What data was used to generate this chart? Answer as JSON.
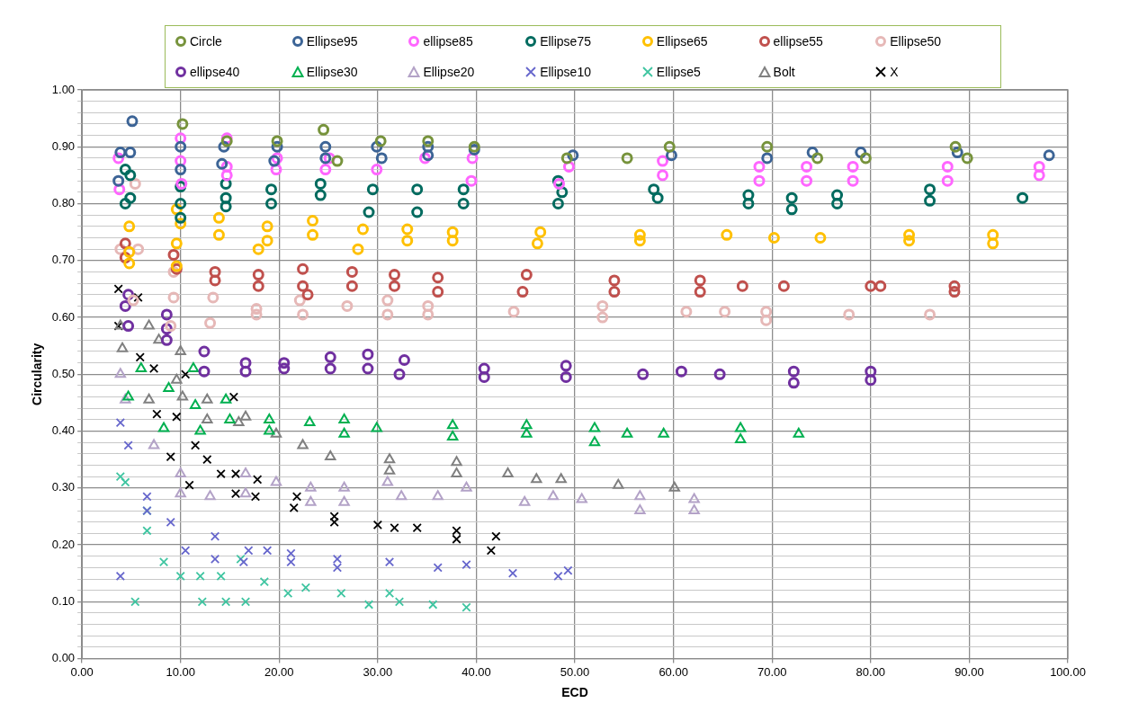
{
  "chart_data": {
    "type": "scatter",
    "xlabel": "ECD",
    "ylabel": "Circularity",
    "grid": true,
    "legend": "top",
    "xlim": [
      0,
      100
    ],
    "xticks": [
      {
        "value": 0,
        "label": "0.00"
      },
      {
        "value": 10,
        "label": "10.00"
      },
      {
        "value": 20,
        "label": "20.00"
      },
      {
        "value": 30,
        "label": "30.00"
      },
      {
        "value": 40,
        "label": "40.00"
      },
      {
        "value": 50,
        "label": "50.00"
      },
      {
        "value": 60,
        "label": "60.00"
      },
      {
        "value": 70,
        "label": "70.00"
      },
      {
        "value": 80,
        "label": "80.00"
      },
      {
        "value": 90,
        "label": "90.00"
      },
      {
        "value": 100,
        "label": "100.00"
      }
    ],
    "ylim": [
      0,
      1
    ],
    "yticks": [
      {
        "value": 0,
        "label": "0.00"
      },
      {
        "value": 0.02,
        "label": null
      },
      {
        "value": 0.04,
        "label": null
      },
      {
        "value": 0.06,
        "label": null
      },
      {
        "value": 0.08,
        "label": null
      },
      {
        "value": 0.1,
        "label": "0.10"
      },
      {
        "value": 0.12,
        "label": null
      },
      {
        "value": 0.14,
        "label": null
      },
      {
        "value": 0.16,
        "label": null
      },
      {
        "value": 0.18,
        "label": null
      },
      {
        "value": 0.2,
        "label": "0.20"
      },
      {
        "value": 0.22,
        "label": null
      },
      {
        "value": 0.24,
        "label": null
      },
      {
        "value": 0.26,
        "label": null
      },
      {
        "value": 0.28,
        "label": null
      },
      {
        "value": 0.3,
        "label": "0.30"
      },
      {
        "value": 0.32,
        "label": null
      },
      {
        "value": 0.34,
        "label": null
      },
      {
        "value": 0.36,
        "label": null
      },
      {
        "value": 0.38,
        "label": null
      },
      {
        "value": 0.4,
        "label": "0.40"
      },
      {
        "value": 0.42,
        "label": null
      },
      {
        "value": 0.44,
        "label": null
      },
      {
        "value": 0.46,
        "label": null
      },
      {
        "value": 0.48,
        "label": null
      },
      {
        "value": 0.5,
        "label": "0.50"
      },
      {
        "value": 0.52,
        "label": null
      },
      {
        "value": 0.54,
        "label": null
      },
      {
        "value": 0.56,
        "label": null
      },
      {
        "value": 0.58,
        "label": null
      },
      {
        "value": 0.6,
        "label": "0.60"
      },
      {
        "value": 0.62,
        "label": null
      },
      {
        "value": 0.64,
        "label": null
      },
      {
        "value": 0.66,
        "label": null
      },
      {
        "value": 0.68,
        "label": null
      },
      {
        "value": 0.7,
        "label": "0.70"
      },
      {
        "value": 0.72,
        "label": null
      },
      {
        "value": 0.74,
        "label": null
      },
      {
        "value": 0.76,
        "label": null
      },
      {
        "value": 0.78,
        "label": null
      },
      {
        "value": 0.8,
        "label": "0.80"
      },
      {
        "value": 0.82,
        "label": null
      },
      {
        "value": 0.84,
        "label": null
      },
      {
        "value": 0.86,
        "label": null
      },
      {
        "value": 0.88,
        "label": null
      },
      {
        "value": 0.9,
        "label": "0.90"
      },
      {
        "value": 0.92,
        "label": null
      },
      {
        "value": 0.94,
        "label": null
      },
      {
        "value": 0.96,
        "label": null
      },
      {
        "value": 0.98,
        "label": null
      },
      {
        "value": 1,
        "label": "1.00"
      }
    ],
    "series": [
      {
        "name": "Circle",
        "color": "#77933c",
        "marker": "circle",
        "x": [
          10.2,
          24.5,
          19.8,
          30.3,
          14.7,
          59.6,
          69.5,
          88.6,
          89.8,
          49.2,
          35.1,
          39.8,
          55.3,
          74.6,
          79.5,
          25.9
        ],
        "values": [
          0.94,
          0.93,
          0.91,
          0.91,
          0.91,
          0.9,
          0.9,
          0.9,
          0.88,
          0.88,
          0.91,
          0.9,
          0.88,
          0.88,
          0.88,
          0.875
        ]
      },
      {
        "name": "Ellipse95",
        "color": "#3c6496",
        "marker": "circle",
        "x": [
          5.1,
          3.9,
          4.9,
          3.7,
          10,
          10,
          14.4,
          14.2,
          19.8,
          19.5,
          24.7,
          24.7,
          29.9,
          30.4,
          35.1,
          35.1,
          39.8,
          49.8,
          59.8,
          69.5,
          74.1,
          79,
          88.8,
          98.1
        ],
        "values": [
          0.945,
          0.89,
          0.89,
          0.84,
          0.9,
          0.86,
          0.9,
          0.87,
          0.9,
          0.875,
          0.9,
          0.88,
          0.9,
          0.88,
          0.9,
          0.885,
          0.895,
          0.885,
          0.885,
          0.88,
          0.89,
          0.89,
          0.89,
          0.885
        ]
      },
      {
        "name": "ellipse85",
        "color": "#ff66ff",
        "marker": "circle",
        "x": [
          3.8,
          3.7,
          10,
          10,
          10.1,
          14.7,
          14.7,
          14.7,
          19.8,
          19.7,
          25.1,
          24.7,
          29.9,
          34.8,
          39.6,
          39.5,
          48.4,
          49.4,
          58.9,
          58.9,
          68.7,
          68.7,
          73.5,
          73.5,
          78.2,
          78.2,
          87.8,
          87.8,
          97.1,
          97.1
        ],
        "values": [
          0.825,
          0.88,
          0.915,
          0.875,
          0.835,
          0.865,
          0.85,
          0.915,
          0.88,
          0.86,
          0.88,
          0.86,
          0.86,
          0.88,
          0.88,
          0.84,
          0.835,
          0.865,
          0.875,
          0.85,
          0.865,
          0.84,
          0.865,
          0.84,
          0.865,
          0.84,
          0.865,
          0.84,
          0.865,
          0.85
        ]
      },
      {
        "name": "Ellipse75",
        "color": "#006b5f",
        "marker": "circle",
        "x": [
          4.4,
          4.9,
          4.4,
          4.9,
          10,
          10,
          10,
          14.6,
          14.6,
          14.6,
          19.2,
          19.2,
          24.2,
          24.2,
          29.1,
          29.5,
          34,
          34,
          38.7,
          38.7,
          48.3,
          48.3,
          48.7,
          58,
          58.4,
          67.6,
          67.6,
          72,
          72,
          76.6,
          76.6,
          86,
          86,
          95.4
        ],
        "values": [
          0.86,
          0.85,
          0.8,
          0.81,
          0.83,
          0.8,
          0.775,
          0.835,
          0.81,
          0.795,
          0.825,
          0.8,
          0.835,
          0.815,
          0.785,
          0.825,
          0.825,
          0.785,
          0.825,
          0.8,
          0.84,
          0.8,
          0.82,
          0.825,
          0.81,
          0.815,
          0.8,
          0.81,
          0.79,
          0.815,
          0.8,
          0.825,
          0.805,
          0.81
        ]
      },
      {
        "name": "Ellipse65",
        "color": "#ffc000",
        "marker": "circle",
        "x": [
          4.8,
          4.8,
          4.8,
          9.6,
          10,
          9.6,
          9.6,
          13.9,
          13.9,
          18.8,
          18.8,
          17.9,
          23.4,
          23.4,
          28.5,
          28,
          33,
          33,
          37.6,
          37.6,
          46.5,
          46.2,
          56.6,
          56.6,
          65.4,
          70.2,
          74.9,
          83.9,
          83.9,
          92.4,
          92.4
        ],
        "values": [
          0.76,
          0.715,
          0.695,
          0.79,
          0.765,
          0.73,
          0.69,
          0.775,
          0.745,
          0.76,
          0.735,
          0.72,
          0.77,
          0.745,
          0.755,
          0.72,
          0.755,
          0.735,
          0.75,
          0.735,
          0.75,
          0.73,
          0.745,
          0.735,
          0.745,
          0.74,
          0.74,
          0.745,
          0.735,
          0.745,
          0.73
        ]
      },
      {
        "name": "ellipse55",
        "color": "#c0504d",
        "marker": "circle",
        "x": [
          4.4,
          4.4,
          9.3,
          9.6,
          13.5,
          13.5,
          17.9,
          17.9,
          22.4,
          22.4,
          22.9,
          27.4,
          27.4,
          31.7,
          31.7,
          36.1,
          36.1,
          45.1,
          44.7,
          54,
          54,
          62.7,
          62.7,
          67,
          71.2,
          80,
          81,
          88.5,
          88.5
        ],
        "values": [
          0.73,
          0.705,
          0.71,
          0.685,
          0.68,
          0.665,
          0.675,
          0.655,
          0.685,
          0.655,
          0.64,
          0.68,
          0.655,
          0.675,
          0.655,
          0.67,
          0.645,
          0.675,
          0.645,
          0.665,
          0.645,
          0.665,
          0.645,
          0.655,
          0.655,
          0.655,
          0.655,
          0.655,
          0.645
        ]
      },
      {
        "name": "Ellipse50",
        "color": "#e6b8b7",
        "marker": "circle",
        "x": [
          5.4,
          5.7,
          3.9,
          5.2,
          9.3,
          9.3,
          9,
          13.3,
          13,
          17.7,
          17.7,
          22.1,
          22.4,
          26.9,
          31,
          31,
          35.1,
          35.1,
          43.8,
          52.8,
          52.8,
          61.3,
          65.2,
          69.4,
          69.4,
          77.8,
          86
        ],
        "values": [
          0.835,
          0.72,
          0.72,
          0.63,
          0.68,
          0.635,
          0.585,
          0.635,
          0.59,
          0.615,
          0.605,
          0.63,
          0.605,
          0.62,
          0.63,
          0.605,
          0.62,
          0.605,
          0.61,
          0.62,
          0.6,
          0.61,
          0.61,
          0.61,
          0.595,
          0.605,
          0.605
        ]
      },
      {
        "name": "ellipse40",
        "color": "#7030a0",
        "marker": "circle",
        "x": [
          4.7,
          4.4,
          4.7,
          8.6,
          8.6,
          8.6,
          12.4,
          12.4,
          16.6,
          16.6,
          20.5,
          20.5,
          25.2,
          25.2,
          29,
          29,
          32.7,
          32.2,
          40.8,
          40.8,
          49.1,
          49.1,
          56.9,
          60.8,
          64.7,
          72.2,
          72.2,
          80,
          80
        ],
        "values": [
          0.64,
          0.62,
          0.585,
          0.605,
          0.58,
          0.56,
          0.54,
          0.505,
          0.52,
          0.505,
          0.52,
          0.51,
          0.53,
          0.51,
          0.535,
          0.51,
          0.525,
          0.5,
          0.51,
          0.495,
          0.515,
          0.495,
          0.5,
          0.505,
          0.5,
          0.505,
          0.485,
          0.505,
          0.49
        ]
      },
      {
        "name": "Ellipse30",
        "color": "#00b050",
        "marker": "triangle",
        "x": [
          4.7,
          6,
          8.8,
          8.3,
          11.3,
          11.5,
          12,
          14.6,
          15,
          19,
          19,
          23.1,
          26.6,
          26.6,
          29.9,
          37.6,
          37.6,
          45.1,
          45.1,
          52,
          52,
          55.3,
          59,
          66.8,
          66.8,
          72.7
        ],
        "values": [
          0.46,
          0.51,
          0.475,
          0.405,
          0.51,
          0.445,
          0.4,
          0.455,
          0.42,
          0.42,
          0.4,
          0.415,
          0.42,
          0.395,
          0.405,
          0.41,
          0.39,
          0.41,
          0.395,
          0.405,
          0.38,
          0.395,
          0.395,
          0.405,
          0.385,
          0.395
        ]
      },
      {
        "name": "Ellipse20",
        "color": "#b3a2c7",
        "marker": "triangle",
        "x": [
          3.9,
          4.4,
          7.3,
          10,
          10,
          13,
          16.6,
          16.6,
          19.7,
          23.2,
          23.2,
          26.6,
          26.6,
          31,
          32.4,
          36.1,
          39,
          44.9,
          47.8,
          50.7,
          56.6,
          56.6,
          62.1,
          62.1
        ],
        "values": [
          0.5,
          0.455,
          0.375,
          0.325,
          0.29,
          0.285,
          0.325,
          0.29,
          0.31,
          0.3,
          0.275,
          0.3,
          0.275,
          0.31,
          0.285,
          0.285,
          0.3,
          0.275,
          0.285,
          0.28,
          0.285,
          0.26,
          0.28,
          0.26
        ]
      },
      {
        "name": "Ellipse10",
        "color": "#6666cc",
        "marker": "cross",
        "x": [
          3.9,
          4.7,
          3.9,
          6.6,
          6.6,
          9,
          10.5,
          13.5,
          13.5,
          16.4,
          16.9,
          18.8,
          21.2,
          21.2,
          25.9,
          25.9,
          31.2,
          36.1,
          39,
          43.7,
          48.3,
          49.3
        ],
        "values": [
          0.415,
          0.375,
          0.145,
          0.285,
          0.26,
          0.24,
          0.19,
          0.215,
          0.175,
          0.17,
          0.19,
          0.19,
          0.185,
          0.17,
          0.175,
          0.16,
          0.17,
          0.16,
          0.165,
          0.15,
          0.145,
          0.155
        ]
      },
      {
        "name": "Ellipse5",
        "color": "#3fc5a1",
        "marker": "cross",
        "x": [
          3.9,
          4.4,
          6.6,
          6.6,
          5.4,
          8.3,
          10,
          12,
          12.2,
          14.1,
          14.6,
          16.1,
          16.6,
          18.5,
          20.9,
          22.7,
          26.3,
          29.1,
          31.2,
          32.2,
          35.6,
          39
        ],
        "values": [
          0.32,
          0.31,
          0.225,
          0.26,
          0.1,
          0.17,
          0.145,
          0.145,
          0.1,
          0.145,
          0.1,
          0.175,
          0.1,
          0.135,
          0.115,
          0.125,
          0.115,
          0.095,
          0.115,
          0.1,
          0.095,
          0.09
        ]
      },
      {
        "name": "Bolt",
        "color": "#808080",
        "marker": "triangle",
        "x": [
          3.9,
          6.8,
          4.1,
          7.8,
          6.8,
          10,
          9.6,
          10.2,
          12.7,
          12.7,
          15.9,
          16.6,
          19.7,
          22.4,
          25.2,
          31.2,
          31.2,
          38,
          38,
          43.2,
          46.1,
          48.6,
          54.4,
          60.1
        ],
        "values": [
          0.585,
          0.585,
          0.545,
          0.56,
          0.455,
          0.54,
          0.49,
          0.46,
          0.455,
          0.42,
          0.415,
          0.425,
          0.395,
          0.375,
          0.355,
          0.35,
          0.33,
          0.345,
          0.325,
          0.325,
          0.315,
          0.315,
          0.305,
          0.3
        ]
      },
      {
        "name": "X",
        "color": "#000000",
        "marker": "cross",
        "x": [
          3.7,
          5.7,
          3.7,
          5.9,
          7.3,
          7.6,
          9.6,
          10.5,
          9,
          10.9,
          11.5,
          12.7,
          14.1,
          15.4,
          15.6,
          15.6,
          17.8,
          17.6,
          21.5,
          21.8,
          25.6,
          25.6,
          30,
          31.7,
          34,
          38,
          38,
          42,
          41.5
        ],
        "values": [
          0.65,
          0.635,
          0.585,
          0.53,
          0.51,
          0.43,
          0.425,
          0.5,
          0.355,
          0.305,
          0.375,
          0.35,
          0.325,
          0.46,
          0.325,
          0.29,
          0.315,
          0.285,
          0.265,
          0.285,
          0.25,
          0.24,
          0.235,
          0.23,
          0.23,
          0.225,
          0.21,
          0.215,
          0.19
        ]
      }
    ]
  }
}
